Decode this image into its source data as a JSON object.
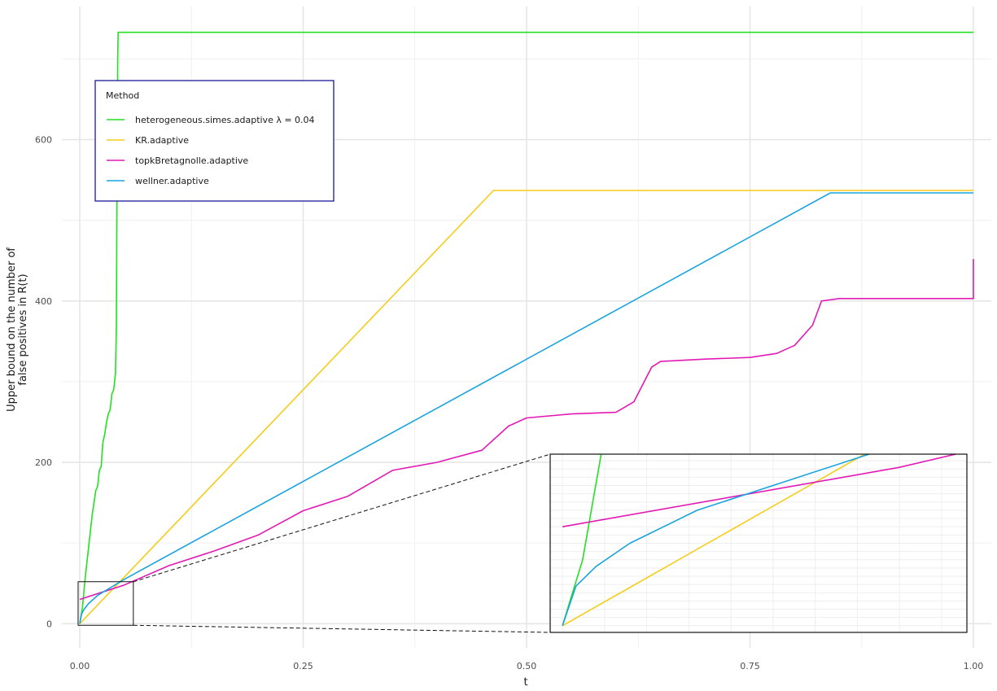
{
  "chart_data": {
    "type": "line",
    "xlabel": "t",
    "ylabel": "Upper bound on the number of\nfalse positives in R(t)",
    "xlim": [
      -0.02,
      1.02
    ],
    "ylim": [
      -30,
      765
    ],
    "x_ticks": [
      0.0,
      0.25,
      0.5,
      0.75,
      1.0
    ],
    "x_tick_labels": [
      "0.00",
      "0.25",
      "0.50",
      "0.75",
      "1.00"
    ],
    "y_ticks": [
      0,
      200,
      400,
      600
    ],
    "y_tick_labels": [
      "0",
      "200",
      "400",
      "600"
    ],
    "grid": true,
    "legend": {
      "title": "Method",
      "placement": "top-left"
    },
    "series": [
      {
        "name": "heterogeneous.simes.adaptive λ = 0.04",
        "color": "#22e022",
        "points": [
          [
            0,
            0
          ],
          [
            0.003,
            20
          ],
          [
            0.006,
            55
          ],
          [
            0.008,
            75
          ],
          [
            0.01,
            95
          ],
          [
            0.012,
            115
          ],
          [
            0.014,
            135
          ],
          [
            0.016,
            150
          ],
          [
            0.018,
            165
          ],
          [
            0.02,
            170
          ],
          [
            0.022,
            190
          ],
          [
            0.024,
            195
          ],
          [
            0.026,
            225
          ],
          [
            0.028,
            235
          ],
          [
            0.03,
            250
          ],
          [
            0.032,
            260
          ],
          [
            0.034,
            265
          ],
          [
            0.036,
            285
          ],
          [
            0.038,
            290
          ],
          [
            0.04,
            310
          ],
          [
            0.041,
            370
          ],
          [
            0.0415,
            480
          ],
          [
            0.042,
            600
          ],
          [
            0.0425,
            700
          ],
          [
            0.043,
            733
          ],
          [
            1.0,
            733
          ]
        ]
      },
      {
        "name": "KR.adaptive",
        "color": "#f5cc1a",
        "points": [
          [
            0,
            0
          ],
          [
            0.463,
            537
          ],
          [
            1.0,
            537
          ]
        ]
      },
      {
        "name": "topkBretagnolle.adaptive",
        "color": "#e21ab5",
        "points": [
          [
            0,
            30
          ],
          [
            0.05,
            48
          ],
          [
            0.1,
            72
          ],
          [
            0.15,
            90
          ],
          [
            0.2,
            110
          ],
          [
            0.25,
            140
          ],
          [
            0.3,
            158
          ],
          [
            0.35,
            190
          ],
          [
            0.4,
            200
          ],
          [
            0.45,
            215
          ],
          [
            0.48,
            245
          ],
          [
            0.5,
            255
          ],
          [
            0.55,
            260
          ],
          [
            0.6,
            262
          ],
          [
            0.62,
            275
          ],
          [
            0.64,
            318
          ],
          [
            0.65,
            325
          ],
          [
            0.7,
            328
          ],
          [
            0.75,
            330
          ],
          [
            0.78,
            335
          ],
          [
            0.8,
            345
          ],
          [
            0.82,
            370
          ],
          [
            0.83,
            400
          ],
          [
            0.85,
            403
          ],
          [
            1.0,
            403
          ],
          [
            1.0,
            452
          ]
        ]
      },
      {
        "name": "wellner.adaptive",
        "color": "#1ba3e0",
        "points": [
          [
            0,
            0
          ],
          [
            0.002,
            12
          ],
          [
            0.005,
            18
          ],
          [
            0.01,
            25
          ],
          [
            0.02,
            35
          ],
          [
            0.05,
            55
          ],
          [
            0.84,
            534
          ],
          [
            1.0,
            534
          ]
        ]
      }
    ],
    "inset": {
      "zoom_xlim": [
        0,
        0.06
      ],
      "zoom_ylim": [
        0,
        52
      ]
    }
  }
}
